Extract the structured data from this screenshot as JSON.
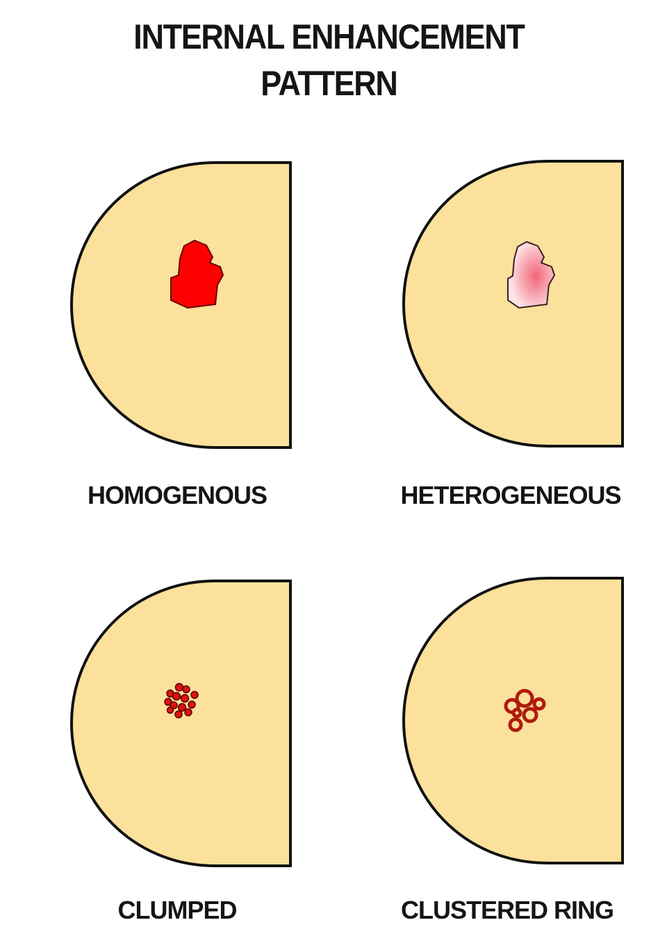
{
  "title": {
    "line1": "INTERNAL ENHANCEMENT",
    "line2": "PATTERN"
  },
  "colors": {
    "breast_fill": "#fbe19b",
    "outline": "#111111",
    "homogenous_lesion": "#ff0000",
    "heterogeneous_lesion_center": "#f26478",
    "heterogeneous_lesion_edge": "#fde3e6",
    "clumped_dot": "#dd1111",
    "ring": "#b01a0e"
  },
  "panels": [
    {
      "label": "HOMOGENOUS",
      "pattern": "homogenous"
    },
    {
      "label": "HETEROGENEOUS",
      "pattern": "heterogeneous"
    },
    {
      "label": "CLUMPED",
      "pattern": "clumped"
    },
    {
      "label": "CLUSTERED RING",
      "pattern": "clustered-ring"
    }
  ]
}
